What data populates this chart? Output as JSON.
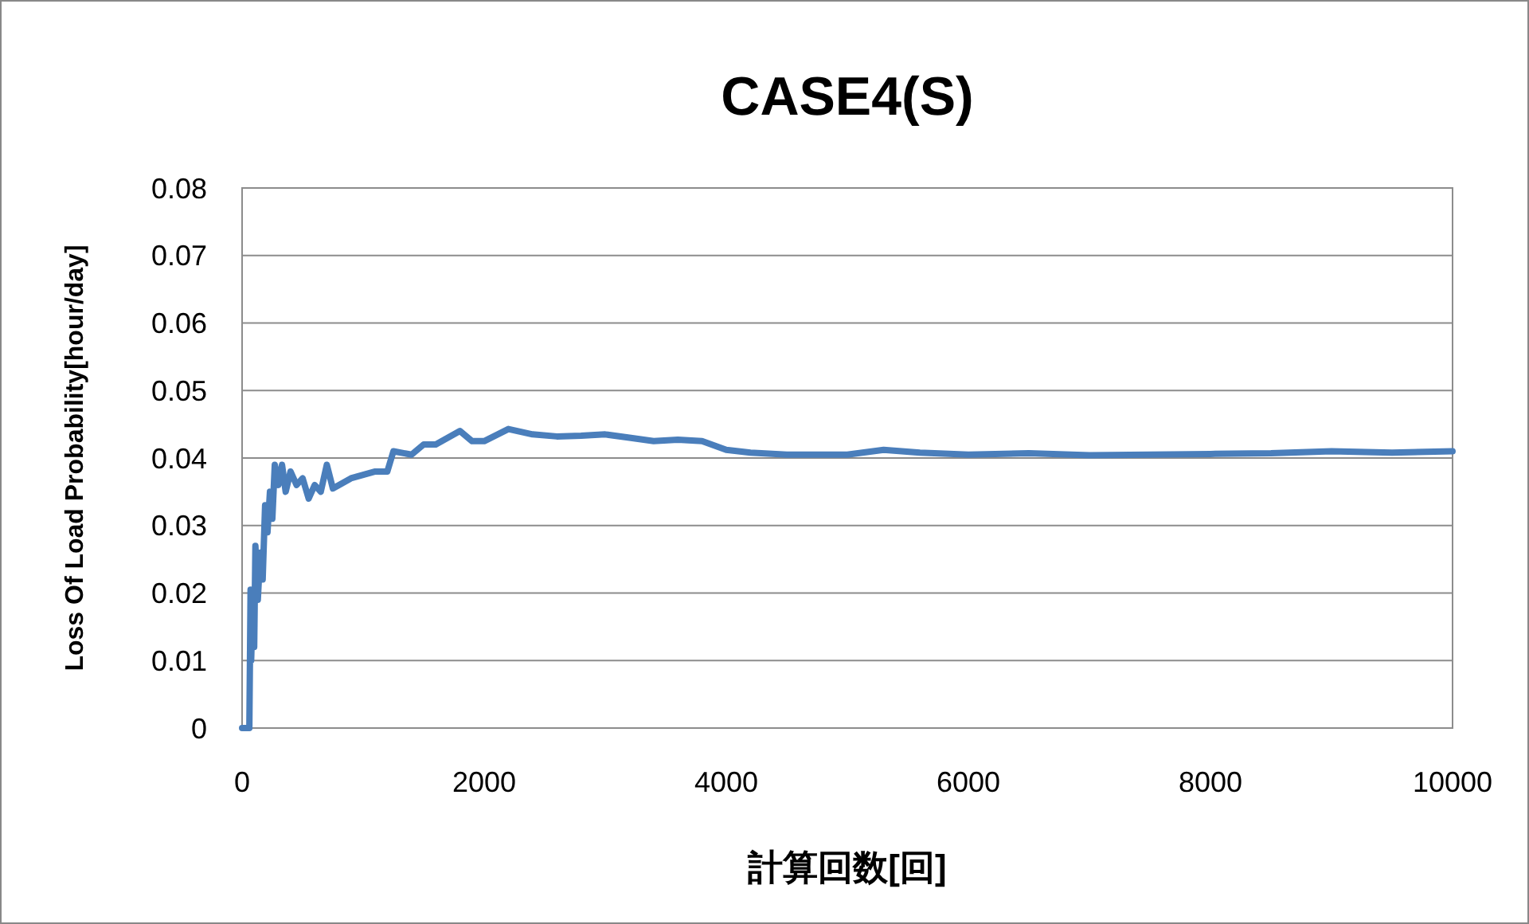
{
  "chart_data": {
    "type": "line",
    "title": "CASE4(S)",
    "xlabel": "計算回数[回]",
    "ylabel": "Loss Of Load Probability[hour/day]",
    "x": [
      0,
      40,
      60,
      70,
      75,
      90,
      100,
      110,
      130,
      150,
      170,
      190,
      210,
      230,
      250,
      270,
      300,
      330,
      360,
      400,
      450,
      500,
      550,
      600,
      650,
      700,
      750,
      800,
      900,
      1000,
      1100,
      1200,
      1250,
      1400,
      1500,
      1600,
      1700,
      1800,
      1900,
      2000,
      2200,
      2400,
      2600,
      2800,
      3000,
      3200,
      3400,
      3600,
      3800,
      4000,
      4200,
      4500,
      4800,
      5000,
      5300,
      5600,
      6000,
      6500,
      7000,
      7500,
      8000,
      8500,
      9000,
      9500,
      10000
    ],
    "series": [
      {
        "color": "#4a7ebb",
        "values": [
          0,
          0,
          0,
          0.0205,
          0.01,
          0.02,
          0.012,
          0.027,
          0.019,
          0.026,
          0.022,
          0.033,
          0.029,
          0.035,
          0.031,
          0.039,
          0.036,
          0.039,
          0.035,
          0.038,
          0.036,
          0.037,
          0.034,
          0.036,
          0.035,
          0.039,
          0.0355,
          0.036,
          0.037,
          0.0375,
          0.038,
          0.038,
          0.041,
          0.0405,
          0.042,
          0.042,
          0.043,
          0.044,
          0.0425,
          0.0425,
          0.0443,
          0.0435,
          0.0432,
          0.0433,
          0.0435,
          0.043,
          0.0425,
          0.0427,
          0.0425,
          0.0412,
          0.0408,
          0.0405,
          0.0405,
          0.0405,
          0.0412,
          0.0408,
          0.0405,
          0.0407,
          0.0404,
          0.0405,
          0.0406,
          0.0407,
          0.041,
          0.0408,
          0.041
        ]
      }
    ],
    "xlim": [
      0,
      10000
    ],
    "xticks": [
      0,
      2000,
      4000,
      6000,
      8000,
      10000
    ],
    "ylim": [
      0,
      0.08
    ],
    "yticks": [
      0,
      0.01,
      0.02,
      0.03,
      0.04,
      0.05,
      0.06,
      0.07,
      0.08
    ],
    "grid": "y",
    "marker": "none",
    "line_style": "solid"
  }
}
